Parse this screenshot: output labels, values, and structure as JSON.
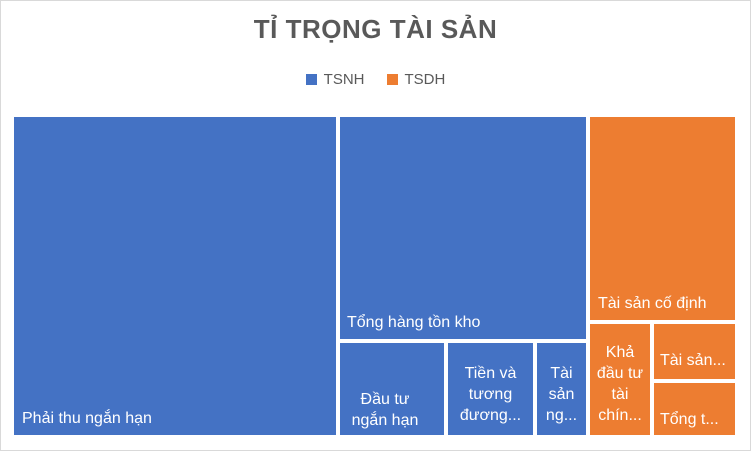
{
  "chart_data": {
    "type": "treemap",
    "title": "TỈ TRỌNG TÀI SẢN",
    "legend_position": "top",
    "series": [
      {
        "name": "TSNH",
        "color": "#4472C4"
      },
      {
        "name": "TSDH",
        "color": "#ED7D31"
      }
    ],
    "tiles": [
      {
        "label": "Phải thu ngắn hạn",
        "group": "TSNH",
        "value": 33.0
      },
      {
        "label": "Tổng hàng tồn kho",
        "group": "TSNH",
        "value": 18.0
      },
      {
        "label": "Đầu tư ngắn hạn",
        "group": "TSNH",
        "value": 4.5
      },
      {
        "label": "Tiền và tương đương...",
        "group": "TSNH",
        "value": 3.3
      },
      {
        "label": "Tài sản ng...",
        "group": "TSNH",
        "value": 1.5
      },
      {
        "label": "Tài sản cố định",
        "group": "TSDH",
        "value": 8.5
      },
      {
        "label": "Khả đầu tư tài chín...",
        "group": "TSDH",
        "value": 2.6
      },
      {
        "label": "Tài sản...",
        "group": "TSDH",
        "value": 1.4
      },
      {
        "label": "Tổng t...",
        "group": "TSDH",
        "value": 1.6
      }
    ]
  }
}
